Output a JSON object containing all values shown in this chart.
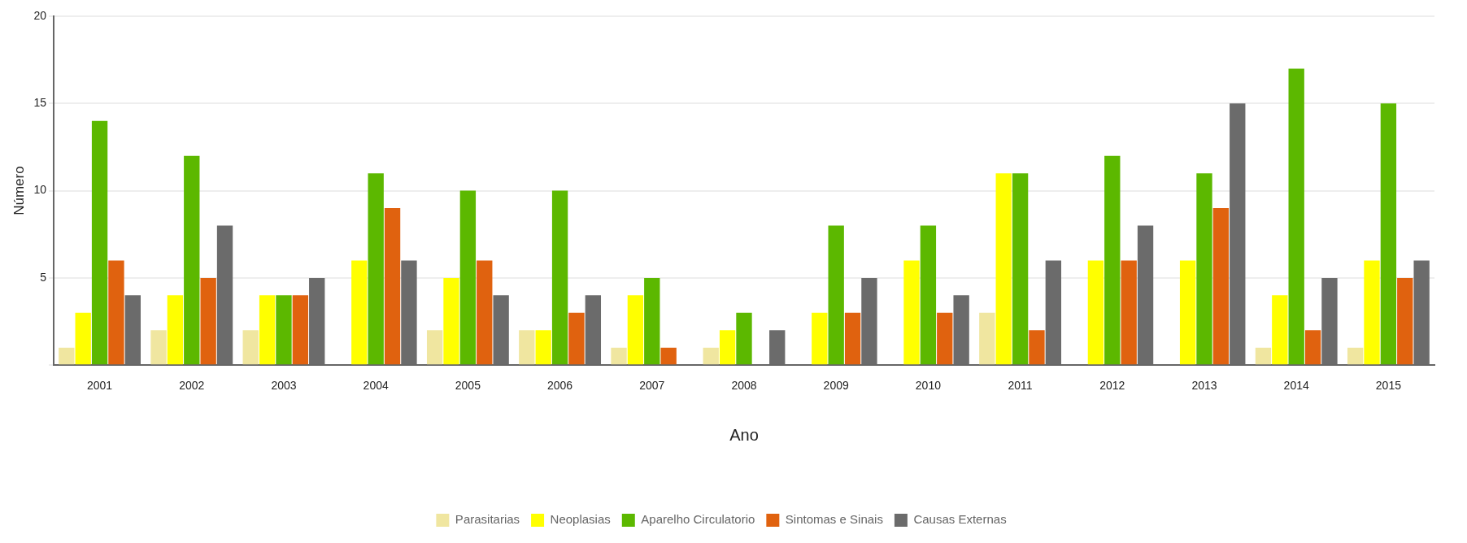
{
  "chart_data": {
    "type": "bar",
    "xlabel": "Ano",
    "ylabel": "Número",
    "categories": [
      "2001",
      "2002",
      "2003",
      "2004",
      "2005",
      "2006",
      "2007",
      "2008",
      "2009",
      "2010",
      "2011",
      "2012",
      "2013",
      "2014",
      "2015"
    ],
    "series": [
      {
        "name": "Parasitarias",
        "color": "#f0e6a0",
        "values": [
          1,
          2,
          2,
          0,
          2,
          2,
          1,
          1,
          0,
          0,
          3,
          0,
          0,
          1,
          1
        ]
      },
      {
        "name": "Neoplasias",
        "color": "#ffff00",
        "values": [
          3,
          4,
          4,
          6,
          5,
          2,
          4,
          2,
          3,
          6,
          11,
          6,
          6,
          4,
          6
        ]
      },
      {
        "name": "Aparelho Circulatorio",
        "color": "#5cb800",
        "values": [
          14,
          12,
          4,
          11,
          10,
          10,
          5,
          3,
          8,
          8,
          11,
          12,
          11,
          17,
          15
        ]
      },
      {
        "name": "Sintomas e Sinais",
        "color": "#e0620f",
        "values": [
          6,
          5,
          4,
          9,
          6,
          3,
          1,
          0,
          3,
          3,
          2,
          6,
          9,
          2,
          5
        ]
      },
      {
        "name": "Causas Externas",
        "color": "#6b6b6b",
        "values": [
          4,
          8,
          5,
          6,
          4,
          4,
          0,
          2,
          5,
          4,
          6,
          8,
          15,
          5,
          6
        ]
      }
    ],
    "ylim": [
      0,
      20
    ],
    "yticks": [
      {
        "value": 0,
        "label": null
      },
      5,
      10,
      15,
      20
    ],
    "grid": "y",
    "legend": "bottom"
  }
}
